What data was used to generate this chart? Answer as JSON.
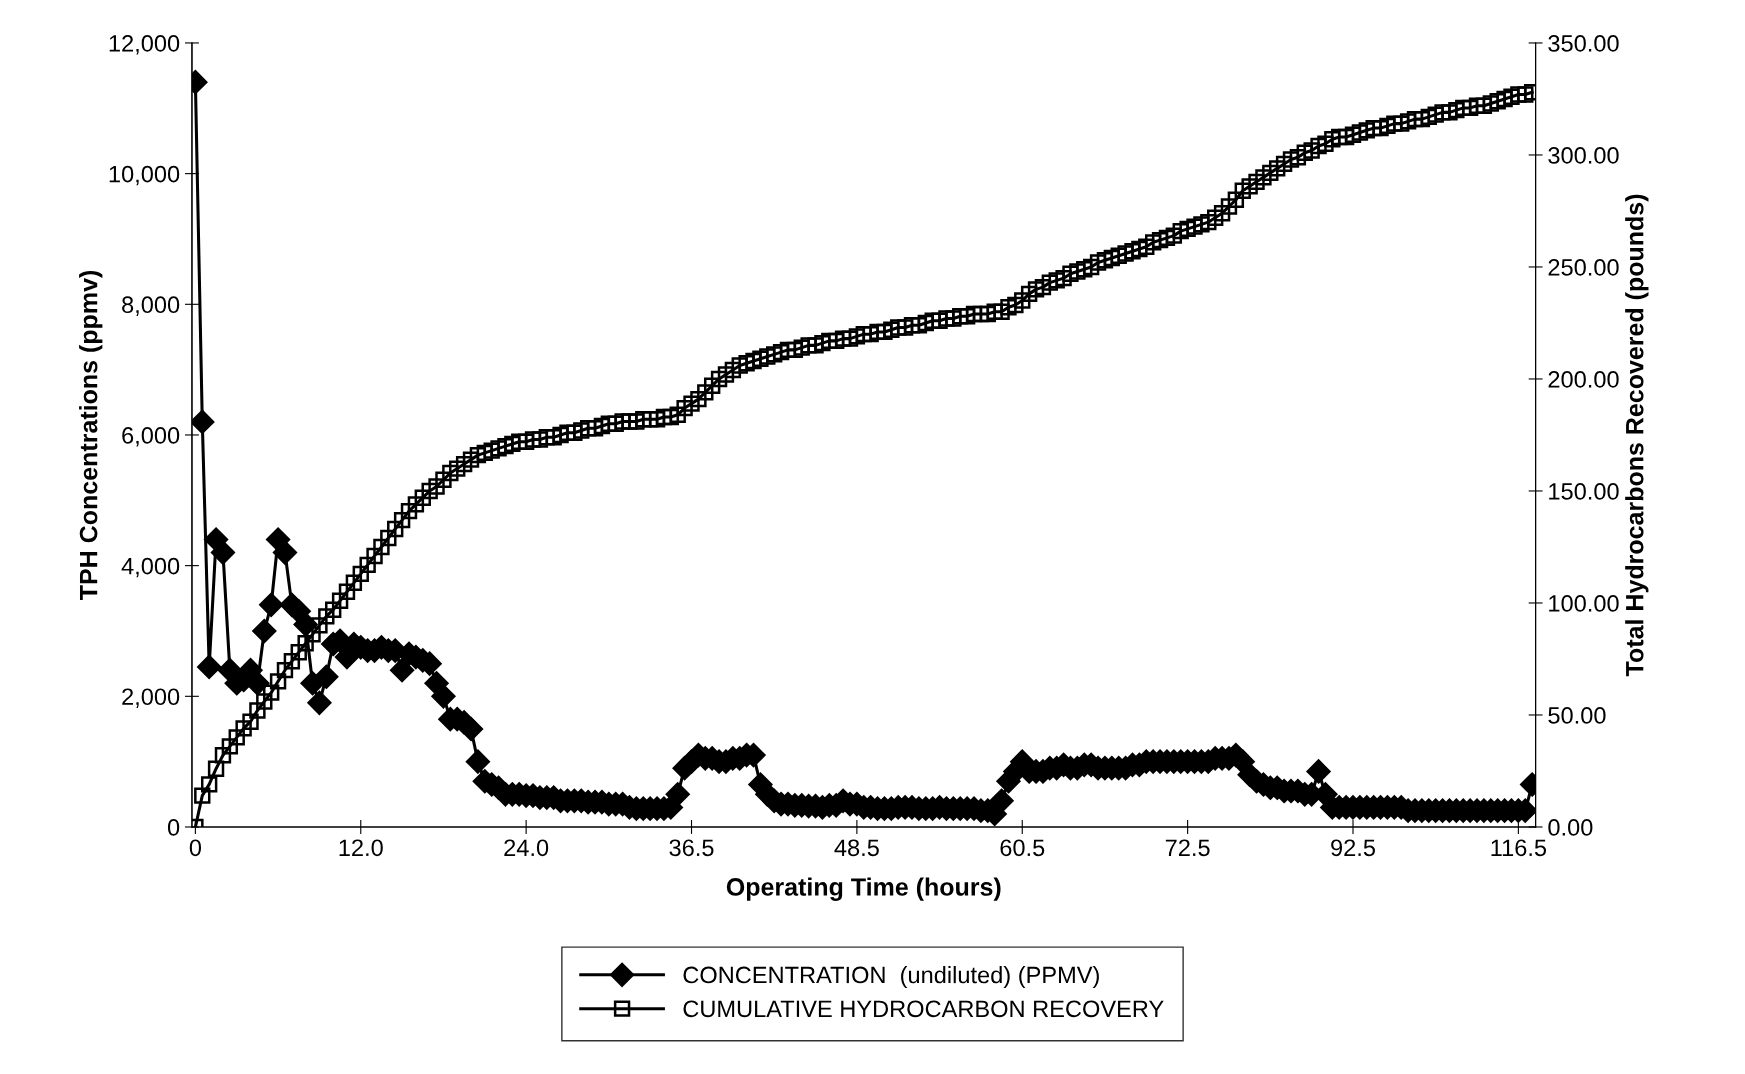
{
  "chart_data": {
    "type": "line",
    "xlabel": "Operating Time (hours)",
    "ylabel": "TPH Concentrations (ppmv)",
    "y2label": "Total Hydrocarbons Recovered (pounds)",
    "categories": [
      "0",
      null,
      null,
      null,
      null,
      null,
      null,
      null,
      null,
      null,
      null,
      null,
      null,
      null,
      null,
      null,
      null,
      null,
      null,
      null,
      null,
      null,
      null,
      null,
      "12.0",
      null,
      null,
      null,
      null,
      null,
      null,
      null,
      null,
      null,
      null,
      null,
      null,
      null,
      null,
      null,
      null,
      null,
      null,
      null,
      null,
      null,
      null,
      null,
      "24.0",
      null,
      null,
      null,
      null,
      null,
      null,
      null,
      null,
      null,
      null,
      null,
      null,
      null,
      null,
      null,
      null,
      null,
      null,
      null,
      null,
      null,
      null,
      null,
      "36.5",
      null,
      null,
      null,
      null,
      null,
      null,
      null,
      null,
      null,
      null,
      null,
      null,
      null,
      null,
      null,
      null,
      null,
      null,
      null,
      null,
      null,
      null,
      null,
      "48.5",
      null,
      null,
      null,
      null,
      null,
      null,
      null,
      null,
      null,
      null,
      null,
      null,
      null,
      null,
      null,
      null,
      null,
      null,
      null,
      null,
      null,
      null,
      null,
      "60.5",
      null,
      null,
      null,
      null,
      null,
      null,
      null,
      null,
      null,
      null,
      null,
      null,
      null,
      null,
      null,
      null,
      null,
      null,
      null,
      null,
      null,
      null,
      null,
      "72.5",
      null,
      null,
      null,
      null,
      null,
      null,
      null,
      null,
      null,
      null,
      null,
      null,
      null,
      null,
      null,
      null,
      null,
      null,
      null,
      null,
      null,
      null,
      null,
      "92.5",
      null,
      null,
      null,
      null,
      null,
      null,
      null,
      null,
      null,
      null,
      null,
      null,
      null,
      null,
      null,
      null,
      null,
      null,
      null,
      null,
      null,
      null,
      null,
      "116.5",
      null,
      null
    ],
    "series": [
      {
        "name": "CONCENTRATION  (undiluted) (PPMV)",
        "color": "#000000",
        "marker": "diamond",
        "values": [
          11400,
          6200,
          2450,
          4400,
          4200,
          2400,
          2200,
          2250,
          2400,
          2200,
          3000,
          3400,
          4400,
          4200,
          3400,
          3300,
          3100,
          2200,
          1900,
          2300,
          2800,
          2850,
          2600,
          2800,
          2750,
          2700,
          2700,
          2750,
          2700,
          2700,
          2400,
          2650,
          2600,
          2550,
          2500,
          2200,
          2000,
          1650,
          1650,
          1600,
          1500,
          1000,
          700,
          650,
          600,
          500,
          500,
          500,
          480,
          480,
          450,
          450,
          450,
          400,
          400,
          400,
          400,
          380,
          380,
          380,
          350,
          350,
          350,
          300,
          280,
          280,
          280,
          280,
          280,
          300,
          500,
          900,
          1000,
          1100,
          1050,
          1050,
          1000,
          1000,
          1050,
          1050,
          1100,
          1100,
          650,
          500,
          400,
          350,
          350,
          330,
          330,
          320,
          320,
          300,
          330,
          330,
          400,
          350,
          350,
          300,
          300,
          280,
          280,
          280,
          300,
          300,
          300,
          280,
          280,
          280,
          300,
          280,
          280,
          280,
          280,
          280,
          250,
          250,
          200,
          400,
          700,
          850,
          1000,
          850,
          850,
          850,
          900,
          900,
          950,
          900,
          900,
          950,
          950,
          900,
          900,
          900,
          900,
          900,
          950,
          950,
          1000,
          1000,
          1000,
          1000,
          1000,
          1000,
          1000,
          1000,
          1000,
          1000,
          1050,
          1050,
          1050,
          1100,
          1000,
          800,
          700,
          650,
          600,
          600,
          550,
          550,
          550,
          500,
          500,
          850,
          500,
          300,
          300,
          300,
          300,
          300,
          300,
          300,
          300,
          300,
          300,
          300,
          250,
          250,
          250,
          250,
          250,
          250,
          250,
          250,
          250,
          250,
          250,
          250,
          250,
          250,
          250,
          250,
          250,
          250,
          650
        ]
      },
      {
        "name": "CUMULATIVE HYDROCARBON RECOVERY",
        "color": "#000000",
        "marker": "square",
        "axis": "y2",
        "values": [
          0,
          14,
          19,
          26,
          32,
          36,
          40,
          44,
          47,
          52,
          56,
          60,
          65,
          70,
          74,
          78,
          82,
          86,
          90,
          94,
          97,
          101,
          105,
          109,
          113,
          117,
          121,
          125,
          129,
          133,
          137,
          141,
          144,
          147,
          150,
          152,
          155,
          158,
          160,
          162,
          164,
          166,
          167,
          168,
          169,
          170,
          171,
          172,
          172,
          173,
          173,
          174,
          174,
          175,
          176,
          176,
          177,
          178,
          178,
          179,
          180,
          180,
          181,
          181,
          181,
          182,
          182,
          182,
          183,
          183,
          184,
          187,
          189,
          191,
          194,
          197,
          200,
          202,
          204,
          206,
          207,
          208,
          209,
          210,
          211,
          212,
          213,
          213,
          214,
          215,
          215,
          216,
          217,
          217,
          218,
          218,
          219,
          220,
          220,
          221,
          221,
          222,
          223,
          223,
          224,
          224,
          225,
          226,
          226,
          227,
          227,
          228,
          228,
          229,
          229,
          229,
          230,
          230,
          232,
          233,
          235,
          238,
          240,
          241,
          243,
          244,
          245,
          247,
          248,
          249,
          250,
          252,
          253,
          254,
          255,
          256,
          257,
          258,
          259,
          261,
          262,
          263,
          264,
          266,
          267,
          268,
          269,
          270,
          272,
          274,
          277,
          280,
          284,
          286,
          288,
          290,
          292,
          294,
          296,
          298,
          299,
          301,
          302,
          304,
          305,
          307,
          308,
          308,
          309,
          310,
          311,
          312,
          312,
          313,
          314,
          314,
          315,
          316,
          316,
          317,
          318,
          319,
          319,
          320,
          321,
          321,
          322,
          322,
          323,
          324,
          325,
          326,
          327,
          327,
          328
        ]
      }
    ],
    "ylim": [
      0,
      12000
    ],
    "yticks": [
      {
        "value": 0,
        "label": "0"
      },
      {
        "value": 2000,
        "label": "2,000"
      },
      {
        "value": 4000,
        "label": "4,000"
      },
      {
        "value": 6000,
        "label": "6,000"
      },
      {
        "value": 8000,
        "label": "8,000"
      },
      {
        "value": 10000,
        "label": "10,000"
      },
      {
        "value": 12000,
        "label": "12,000"
      }
    ],
    "y2lim": [
      0,
      350
    ],
    "y2ticks": [
      {
        "value": 0,
        "label": "0.00"
      },
      {
        "value": 50,
        "label": "50.00"
      },
      {
        "value": 100,
        "label": "100.00"
      },
      {
        "value": 150,
        "label": "150.00"
      },
      {
        "value": 200,
        "label": "200.00"
      },
      {
        "value": 250,
        "label": "250.00"
      },
      {
        "value": 300,
        "label": "300.00"
      },
      {
        "value": 350,
        "label": "350.00"
      }
    ],
    "grid": false,
    "legend": "bottom",
    "line_style": "solid"
  }
}
